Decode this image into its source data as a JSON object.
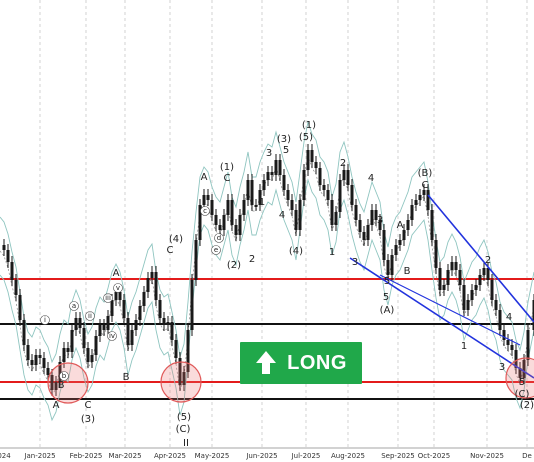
{
  "chart_data": {
    "type": "line",
    "x_ticks": [
      "024",
      "Jan-2025",
      "Feb-2025",
      "Mar-2025",
      "Apr-2025",
      "May-2025",
      "Jun-2025",
      "Jul-2025",
      "Aug-2025",
      "Sep-2025",
      "Oct-2025",
      "Nov-2025",
      "De"
    ],
    "horizontal_levels": [
      {
        "name": "resistance",
        "color": "#e31b1b"
      },
      {
        "name": "pivot",
        "color": "#111111"
      },
      {
        "name": "support",
        "color": "#e31b1b"
      },
      {
        "name": "stop",
        "color": "#111111"
      }
    ],
    "trend_channel_color": "#2233dd",
    "wave_labels": [
      "A",
      "B",
      "(3)",
      "C",
      "A",
      "B",
      "C",
      "(4)",
      "(C)",
      "II",
      "(5)",
      "A",
      "C",
      "(1)",
      "(2)",
      "1",
      "2",
      "3",
      "4",
      "5",
      "(3)",
      "(4)",
      "(5)",
      "(1)",
      "1",
      "2",
      "3",
      "4",
      "5",
      "(A)",
      "(B)",
      "A",
      "B",
      "C",
      "1",
      "2",
      "3",
      "5",
      "(C)",
      "(2)",
      "5",
      "3",
      "4"
    ],
    "roman_labels": [
      "i",
      "ii",
      "iii",
      "iv",
      "v",
      "a",
      "b",
      "c",
      "d",
      "e"
    ]
  },
  "badge": {
    "label": "LONG",
    "icon": "arrow-up-icon",
    "color": "#20a84a"
  }
}
